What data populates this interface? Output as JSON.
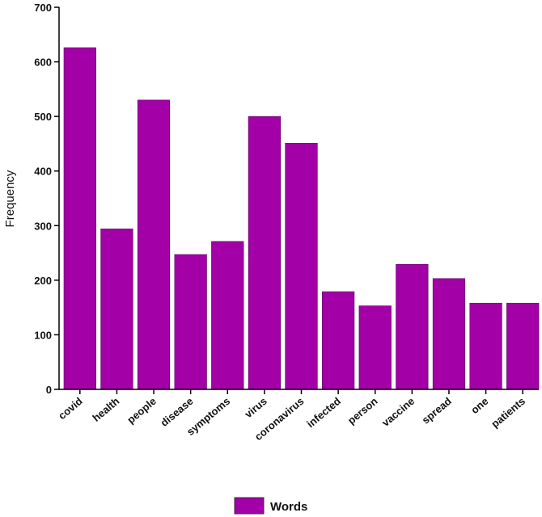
{
  "chart_data": {
    "type": "bar",
    "categories": [
      "covid",
      "health",
      "people",
      "disease",
      "symptoms",
      "virus",
      "coronavirus",
      "infected",
      "person",
      "vaccine",
      "spread",
      "one",
      "patients"
    ],
    "series": [
      {
        "name": "Words",
        "values": [
          626,
          294,
          530,
          247,
          271,
          500,
          451,
          179,
          153,
          229,
          203,
          158,
          158
        ],
        "color": "#a300a8"
      }
    ],
    "ylabel": "Frequency",
    "xlabel": "",
    "ylim": [
      0,
      700
    ],
    "yticks": [
      0,
      100,
      200,
      300,
      400,
      500,
      600,
      700
    ],
    "grid": false,
    "legend": "bottom-center"
  }
}
